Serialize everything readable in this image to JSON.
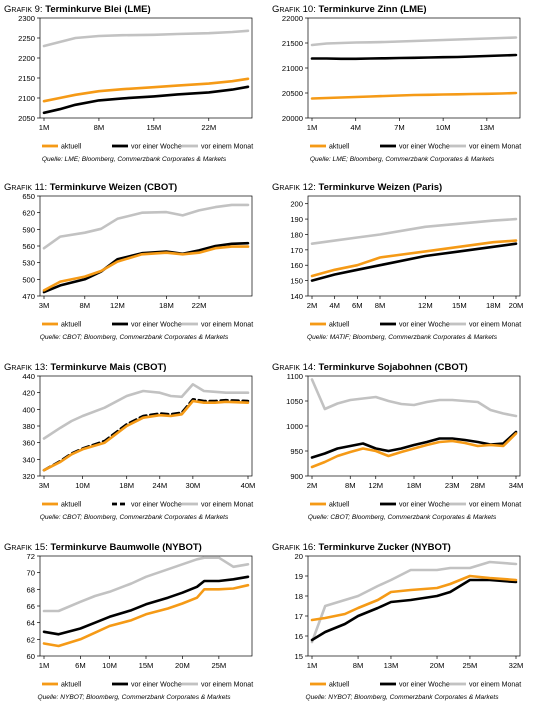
{
  "colors": {
    "aktuell": "#f59a16",
    "woche": "#000000",
    "monat": "#c2c2c2"
  },
  "charts": [
    {
      "grafik": "Grafik 9:",
      "title": "Terminkurve Blei (LME)",
      "source": "Quelle: LME; Bloomberg, Commerzbank Corporates & Markets",
      "chart_data": {
        "type": "line",
        "title": "Terminkurve Blei (LME)",
        "x": [
          1,
          3,
          5,
          8,
          11,
          15,
          18,
          22,
          25,
          27
        ],
        "ticks": [
          "1M",
          "8M",
          "15M",
          "22M"
        ],
        "tickIdx": [
          0,
          3,
          5,
          7
        ],
        "ylim": [
          2050,
          2300
        ],
        "yticks": [
          2050,
          2100,
          2150,
          2200,
          2250,
          2300
        ],
        "series": [
          {
            "name": "aktuell",
            "values": [
              2092,
              2100,
              2108,
              2117,
              2122,
              2127,
              2131,
              2136,
              2142,
              2148
            ]
          },
          {
            "name": "vor einer Woche",
            "values": [
              2063,
              2072,
              2083,
              2094,
              2099,
              2104,
              2109,
              2114,
              2121,
              2128
            ]
          },
          {
            "name": "vor einem Monat",
            "values": [
              2230,
              2240,
              2250,
              2255,
              2257,
              2258,
              2260,
              2262,
              2265,
              2268
            ]
          }
        ]
      }
    },
    {
      "grafik": "Grafik 10:",
      "title": "Terminkurve Zinn (LME)",
      "source": "Quelle: LME; Bloomberg, Commerzbank Corporates & Markets",
      "chart_data": {
        "type": "line",
        "title": "Terminkurve Zinn (LME)",
        "x": [
          1,
          2,
          3,
          4,
          5,
          6,
          7,
          8,
          9,
          10,
          11,
          12,
          13,
          14,
          15
        ],
        "ticks": [
          "1M",
          "4M",
          "7M",
          "10M",
          "13M"
        ],
        "tickIdx": [
          0,
          3,
          6,
          9,
          12
        ],
        "ylim": [
          20000,
          22000
        ],
        "yticks": [
          20000,
          20500,
          21000,
          21500,
          22000
        ],
        "series": [
          {
            "name": "aktuell",
            "values": [
              20390,
              20400,
              20410,
              20420,
              20430,
              20440,
              20450,
              20460,
              20465,
              20470,
              20475,
              20480,
              20485,
              20490,
              20500
            ]
          },
          {
            "name": "vor einer Woche",
            "values": [
              21190,
              21190,
              21185,
              21185,
              21190,
              21195,
              21200,
              21205,
              21210,
              21215,
              21220,
              21230,
              21240,
              21250,
              21260
            ]
          },
          {
            "name": "vor einem Monat",
            "values": [
              21460,
              21490,
              21500,
              21510,
              21515,
              21520,
              21530,
              21540,
              21550,
              21560,
              21570,
              21580,
              21590,
              21600,
              21610
            ]
          }
        ]
      }
    },
    {
      "grafik": "Grafik 11:",
      "title": "Terminkurve Weizen (CBOT)",
      "source": "Quelle: CBOT; Bloomberg, Commerzbank Corporates & Markets",
      "chart_data": {
        "type": "line",
        "title": "Terminkurve Weizen (CBOT)",
        "x": [
          3,
          5,
          8,
          10,
          12,
          15,
          18,
          20,
          22,
          24,
          26,
          28
        ],
        "ticks": [
          "3M",
          "8M",
          "12M",
          "18M",
          "22M"
        ],
        "tickIdx": [
          0,
          2,
          4,
          6,
          8
        ],
        "ylim": [
          470,
          650
        ],
        "yticks": [
          470,
          500,
          530,
          560,
          590,
          620,
          650
        ],
        "series": [
          {
            "name": "aktuell",
            "values": [
              480,
              496,
              505,
              515,
              532,
              545,
              548,
              545,
              548,
              556,
              559,
              559
            ]
          },
          {
            "name": "vor einer Woche",
            "values": [
              477,
              489,
              500,
              514,
              536,
              547,
              550,
              546,
              552,
              560,
              564,
              565
            ]
          },
          {
            "name": "vor einem Monat",
            "values": [
              556,
              577,
              584,
              591,
              609,
              620,
              621,
              615,
              624,
              630,
              634,
              634
            ]
          }
        ]
      }
    },
    {
      "grafik": "Grafik 12:",
      "title": "Terminkurve Weizen (Paris)",
      "source": "Quelle: MATIF; Bloomberg, Commerzbank Corporates & Markets",
      "chart_data": {
        "type": "line",
        "title": "Terminkurve Weizen (Paris)",
        "x": [
          2,
          4,
          6,
          8,
          12,
          15,
          18,
          20
        ],
        "ticks": [
          "2M",
          "4M",
          "6M",
          "8M",
          "12M",
          "15M",
          "18M",
          "20M"
        ],
        "tickIdx": [
          0,
          1,
          2,
          3,
          4,
          5,
          6,
          7
        ],
        "ylim": [
          140,
          205
        ],
        "yticks": [
          140,
          150,
          160,
          170,
          180,
          190,
          200
        ],
        "series": [
          {
            "name": "aktuell",
            "values": [
              153,
              157,
              160,
              165,
              169,
              172,
              175,
              176
            ]
          },
          {
            "name": "vor einer Woche",
            "values": [
              150,
              154,
              157,
              160,
              166,
              169,
              172,
              174
            ]
          },
          {
            "name": "vor einem Monat",
            "values": [
              174,
              176,
              178,
              180,
              185,
              187,
              189,
              190
            ]
          }
        ]
      }
    },
    {
      "grafik": "Grafik 13:",
      "title": "Terminkurve Mais (CBOT)",
      "source": "Quelle: CBOT; Bloomberg, Commerzbank Corporates & Markets",
      "chart_data": {
        "type": "line",
        "title": "Terminkurve Mais (CBOT)",
        "x": [
          3,
          6,
          8,
          10,
          14,
          18,
          21,
          24,
          26,
          28,
          30,
          32,
          34,
          36,
          40
        ],
        "ticks": [
          "3M",
          "10M",
          "18M",
          "24M",
          "30M",
          "40M"
        ],
        "tickIdx": [
          0,
          3,
          5,
          7,
          10,
          14
        ],
        "ylim": [
          320,
          440
        ],
        "yticks": [
          320,
          340,
          360,
          380,
          400,
          420,
          440
        ],
        "series": [
          {
            "name": "aktuell",
            "values": [
              327,
              337,
              346,
              352,
              360,
              380,
              390,
              393,
              392,
              394,
              410,
              408,
              408,
              409,
              408
            ]
          },
          {
            "name": "vor einer Woche",
            "values": [
              327,
              338,
              347,
              353,
              362,
              382,
              392,
              395,
              394,
              396,
              412,
              410,
              410,
              411,
              410
            ]
          },
          {
            "name": "vor einem Monat",
            "values": [
              365,
              378,
              386,
              392,
              402,
              416,
              422,
              420,
              416,
              415,
              430,
              422,
              421,
              420,
              420
            ]
          }
        ]
      }
    },
    {
      "grafik": "Grafik 14:",
      "title": "Terminkurve Sojabohnen (CBOT)",
      "source": "Quelle: CBOT; Bloomberg, Commerzbank Corporates & Markets",
      "chart_data": {
        "type": "line",
        "title": "Terminkurve Sojabohnen (CBOT)",
        "x": [
          2,
          4,
          6,
          8,
          10,
          12,
          14,
          16,
          18,
          20,
          22,
          24,
          26,
          28,
          30,
          32,
          34
        ],
        "ticks": [
          "2M",
          "8M",
          "12M",
          "18M",
          "23M",
          "28M",
          "34M"
        ],
        "tickIdx": [
          0,
          3,
          5,
          8,
          11,
          13,
          16
        ],
        "ylim": [
          900,
          1100
        ],
        "yticks": [
          900,
          950,
          1000,
          1050,
          1100
        ],
        "series": [
          {
            "name": "aktuell",
            "values": [
              918,
              928,
              940,
              948,
              955,
              950,
              940,
              948,
              955,
              962,
              968,
              970,
              966,
              960,
              962,
              960,
              985
            ]
          },
          {
            "name": "vor einer Woche",
            "values": [
              937,
              945,
              955,
              960,
              965,
              955,
              950,
              955,
              962,
              968,
              975,
              975,
              972,
              968,
              963,
              965,
              988
            ]
          },
          {
            "name": "vor einem Monat",
            "values": [
              1093,
              1034,
              1045,
              1052,
              1055,
              1058,
              1050,
              1044,
              1042,
              1048,
              1052,
              1052,
              1050,
              1048,
              1032,
              1025,
              1020
            ]
          }
        ]
      }
    },
    {
      "grafik": "Grafik 15:",
      "title": "Terminkurve Baumwolle (NYBOT)",
      "source": "Quelle: NYBOT; Bloomberg, Commerzbank Corporates & Markets",
      "chart_data": {
        "type": "line",
        "title": "Terminkurve Baumwolle (NYBOT)",
        "x": [
          1,
          3,
          6,
          8,
          10,
          13,
          15,
          18,
          20,
          22,
          23,
          25,
          27,
          29
        ],
        "ticks": [
          "1M",
          "6M",
          "10M",
          "15M",
          "20M",
          "25M"
        ],
        "tickIdx": [
          0,
          2,
          4,
          6,
          8,
          11
        ],
        "ylim": [
          60,
          72
        ],
        "yticks": [
          60,
          62,
          64,
          66,
          68,
          70,
          72
        ],
        "series": [
          {
            "name": "aktuell",
            "values": [
              61.5,
              61.2,
              62.0,
              62.8,
              63.6,
              64.3,
              65.0,
              65.7,
              66.3,
              67.0,
              68.0,
              68.0,
              68.1,
              68.5
            ]
          },
          {
            "name": "vor einer Woche",
            "values": [
              62.9,
              62.6,
              63.3,
              64.0,
              64.7,
              65.5,
              66.2,
              67.0,
              67.6,
              68.3,
              69.0,
              69.0,
              69.2,
              69.5
            ]
          },
          {
            "name": "vor einem Monat",
            "values": [
              65.4,
              65.4,
              66.5,
              67.2,
              67.7,
              68.7,
              69.5,
              70.4,
              71.0,
              71.6,
              71.8,
              71.8,
              70.7,
              71.0
            ]
          }
        ]
      }
    },
    {
      "grafik": "Grafik 16:",
      "title": "Terminkurve Zucker (NYBOT)",
      "source": "Quelle: NYBOT; Bloomberg, Commerzbank Corporates & Markets",
      "chart_data": {
        "type": "line",
        "title": "Terminkurve Zucker (NYBOT)",
        "x": [
          1,
          3,
          6,
          8,
          11,
          13,
          16,
          20,
          22,
          25,
          28,
          32
        ],
        "ticks": [
          "1M",
          "8M",
          "13M",
          "20M",
          "25M",
          "32M"
        ],
        "tickIdx": [
          0,
          3,
          5,
          7,
          9,
          11
        ],
        "ylim": [
          15,
          20
        ],
        "yticks": [
          15,
          16,
          17,
          18,
          19,
          20
        ],
        "series": [
          {
            "name": "aktuell",
            "values": [
              16.8,
              16.9,
              17.1,
              17.4,
              17.8,
              18.2,
              18.3,
              18.4,
              18.6,
              19.0,
              18.9,
              18.8
            ]
          },
          {
            "name": "vor einer Woche",
            "values": [
              15.8,
              16.2,
              16.6,
              17.0,
              17.4,
              17.7,
              17.8,
              18.0,
              18.2,
              18.8,
              18.8,
              18.7
            ]
          },
          {
            "name": "vor einem Monat",
            "values": [
              15.7,
              17.5,
              17.8,
              18.0,
              18.5,
              18.8,
              19.3,
              19.3,
              19.4,
              19.4,
              19.7,
              19.6
            ]
          }
        ]
      }
    }
  ]
}
